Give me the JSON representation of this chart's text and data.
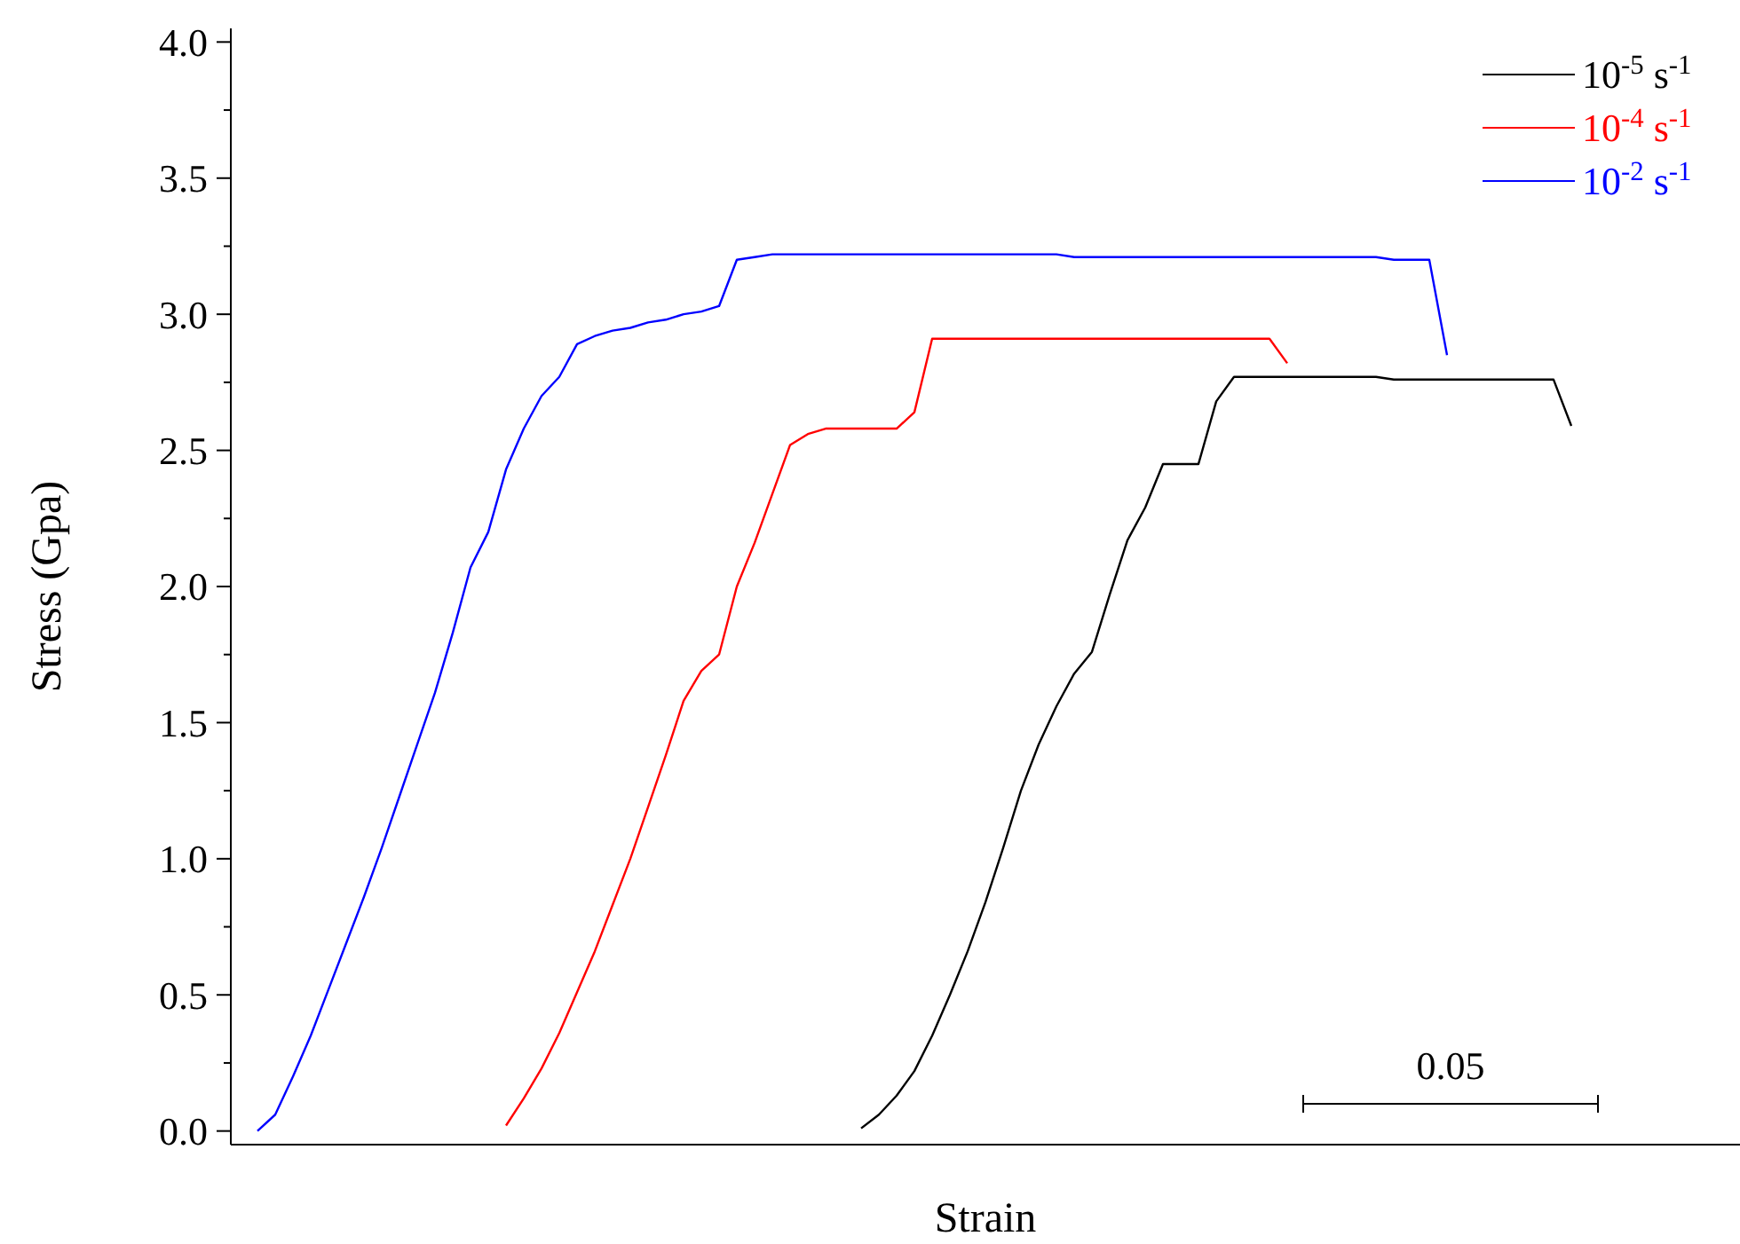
{
  "chart_data": {
    "type": "line",
    "xlabel": "Strain",
    "ylabel": "Stress (Gpa)",
    "ylim": [
      -0.05,
      4.05
    ],
    "yticks": [
      {
        "value": 0,
        "label": "0.0"
      },
      {
        "value": 0.5,
        "label": "0.5"
      },
      {
        "value": 1,
        "label": "1.0"
      },
      {
        "value": 1.5,
        "label": "1.5"
      },
      {
        "value": 2,
        "label": "2.0"
      },
      {
        "value": 2.5,
        "label": "2.5"
      },
      {
        "value": 3,
        "label": "3.0"
      },
      {
        "value": 3.5,
        "label": "3.5"
      },
      {
        "value": 4,
        "label": "4.0"
      }
    ],
    "tick_labels": "y",
    "grid": false,
    "legend": "top right",
    "marker": "none",
    "line_style": "solid",
    "annotations": [
      "0.05"
    ],
    "categories": [
      null,
      null,
      null,
      null,
      null,
      null,
      null,
      null,
      null,
      null,
      null,
      null,
      null,
      null,
      null,
      null,
      null,
      null,
      null,
      null,
      null,
      null,
      null,
      null,
      null,
      null,
      null,
      null,
      null,
      null,
      null,
      null,
      null,
      null,
      null,
      null,
      null,
      null,
      null,
      null,
      null,
      null,
      null,
      null,
      null,
      null,
      null,
      null,
      null,
      null,
      null,
      null,
      null,
      null,
      null,
      null,
      null,
      null,
      null,
      null,
      null,
      null,
      null,
      null,
      null,
      null,
      null,
      null,
      null,
      null,
      null,
      null,
      null,
      null,
      null
    ],
    "series": [
      {
        "name": "10$^{-5}$ s$^{-1}$",
        "color": "#000000",
        "values": [
          null,
          null,
          null,
          null,
          null,
          null,
          null,
          null,
          null,
          null,
          null,
          null,
          null,
          null,
          null,
          null,
          null,
          null,
          null,
          null,
          null,
          null,
          null,
          null,
          null,
          null,
          null,
          null,
          null,
          null,
          null,
          null,
          null,
          null,
          0.01,
          0.06,
          0.13,
          0.22,
          0.35,
          0.5,
          0.66,
          0.84,
          1.04,
          1.25,
          1.42,
          1.56,
          1.68,
          1.76,
          1.97,
          2.17,
          2.29,
          2.45,
          2.45,
          2.45,
          2.68,
          2.77,
          2.77,
          2.77,
          2.77,
          2.77,
          2.77,
          2.77,
          2.77,
          2.77,
          2.76,
          2.76,
          2.76,
          2.76,
          2.76,
          2.76,
          2.76,
          2.76,
          2.76,
          2.76,
          2.59
        ]
      },
      {
        "name": "10$^{-4}$ s$^{-1}$",
        "color": "#ff0000",
        "values": [
          null,
          null,
          null,
          null,
          null,
          null,
          null,
          null,
          null,
          null,
          null,
          null,
          null,
          null,
          0.02,
          0.12,
          0.23,
          0.36,
          0.51,
          0.66,
          0.83,
          1.0,
          1.19,
          1.38,
          1.58,
          1.69,
          1.75,
          2.0,
          2.16,
          2.34,
          2.52,
          2.56,
          2.58,
          2.58,
          2.58,
          2.58,
          2.58,
          2.64,
          2.91,
          2.91,
          2.91,
          2.91,
          2.91,
          2.91,
          2.91,
          2.91,
          2.91,
          2.91,
          2.91,
          2.91,
          2.91,
          2.91,
          2.91,
          2.91,
          2.91,
          2.91,
          2.91,
          2.91,
          2.82,
          null,
          null,
          null,
          null,
          null,
          null,
          null,
          null,
          null,
          null,
          null,
          null,
          null,
          null,
          null,
          null
        ]
      },
      {
        "name": "10$^{-2}$ s$^{-1}$",
        "color": "#0000ff",
        "values": [
          0,
          0.06,
          0.2,
          0.35,
          0.52,
          0.69,
          0.86,
          1.04,
          1.23,
          1.42,
          1.61,
          1.83,
          2.07,
          2.2,
          2.43,
          2.58,
          2.7,
          2.77,
          2.89,
          2.92,
          2.94,
          2.95,
          2.97,
          2.98,
          3.0,
          3.01,
          3.03,
          3.2,
          3.21,
          3.22,
          3.22,
          3.22,
          3.22,
          3.22,
          3.22,
          3.22,
          3.22,
          3.22,
          3.22,
          3.22,
          3.22,
          3.22,
          3.22,
          3.22,
          3.22,
          3.22,
          3.21,
          3.21,
          3.21,
          3.21,
          3.21,
          3.21,
          3.21,
          3.21,
          3.21,
          3.21,
          3.21,
          3.21,
          3.21,
          3.21,
          3.21,
          3.21,
          3.21,
          3.21,
          3.2,
          3.2,
          3.2,
          2.85,
          null,
          null,
          null,
          null,
          null,
          null,
          null
        ]
      }
    ]
  }
}
